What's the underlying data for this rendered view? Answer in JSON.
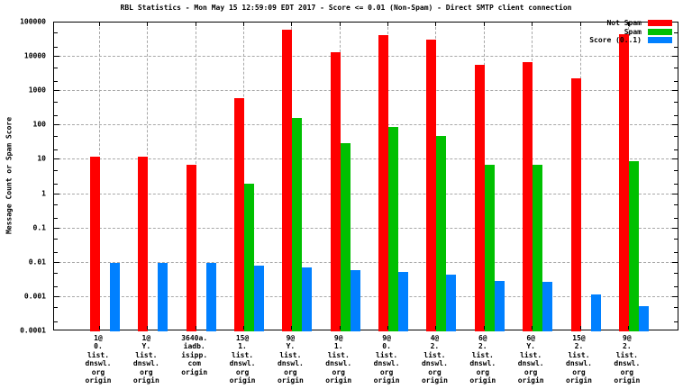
{
  "title": "RBL Statistics - Mon May 15 12:59:09 EDT 2017 - Score <= 0.01 (Non-Spam) - Direct SMTP client connection",
  "ylabel": "Message Count or Spam Score",
  "colors": {
    "not_spam": "#ff0000",
    "spam": "#00c000",
    "score": "#0080ff",
    "grid": "#a8a8a8"
  },
  "chart_data": {
    "type": "bar",
    "y_scale": "log",
    "ylim": [
      0.0001,
      100000
    ],
    "grid": true,
    "legend_position": "top-right",
    "y_tick_labels": [
      "100000",
      "10000",
      "1000",
      "100",
      "10",
      "1",
      "0.1",
      "0.01",
      "0.001",
      "0.0001"
    ],
    "categories": [
      [
        "1@",
        "0.",
        "list.",
        "dnswl.",
        "org",
        "origin"
      ],
      [
        "1@",
        "Y.",
        "list.",
        "dnswl.",
        "org",
        "origin"
      ],
      [
        "3640a.",
        "iadb.",
        "isipp.",
        "com",
        "origin"
      ],
      [
        "15@",
        "1.",
        "list.",
        "dnswl.",
        "org",
        "origin"
      ],
      [
        "9@",
        "Y.",
        "list.",
        "dnswl.",
        "org",
        "origin"
      ],
      [
        "9@",
        "1.",
        "list.",
        "dnswl.",
        "org",
        "origin"
      ],
      [
        "9@",
        "0.",
        "list.",
        "dnswl.",
        "org",
        "origin"
      ],
      [
        "4@",
        "2.",
        "list.",
        "dnswl.",
        "org",
        "origin"
      ],
      [
        "6@",
        "2.",
        "list.",
        "dnswl.",
        "org",
        "origin"
      ],
      [
        "6@",
        "Y.",
        "list.",
        "dnswl.",
        "org",
        "origin"
      ],
      [
        "15@",
        "2.",
        "list.",
        "dnswl.",
        "org",
        "origin"
      ],
      [
        "9@",
        "2.",
        "list.",
        "dnswl.",
        "org",
        "origin"
      ]
    ],
    "series": [
      {
        "name": "Not Spam",
        "color": "#ff0000",
        "values": [
          12,
          12,
          7,
          620,
          60000,
          14000,
          42000,
          32000,
          6000,
          7000,
          2300,
          45000
        ]
      },
      {
        "name": "Spam",
        "color": "#00c000",
        "values": [
          null,
          null,
          null,
          2,
          170,
          30,
          90,
          50,
          7,
          7,
          null,
          9
        ]
      },
      {
        "name": "Score (0..1)",
        "color": "#0080ff",
        "values": [
          0.01,
          0.01,
          0.01,
          0.008,
          0.0075,
          0.006,
          0.0055,
          0.0045,
          0.003,
          0.0027,
          0.0012,
          0.00055
        ]
      }
    ]
  },
  "legend": [
    {
      "label": "Not Spam",
      "color": "#ff0000"
    },
    {
      "label": "Spam",
      "color": "#00c000"
    },
    {
      "label": "Score (0..1)",
      "color": "#0080ff"
    }
  ]
}
